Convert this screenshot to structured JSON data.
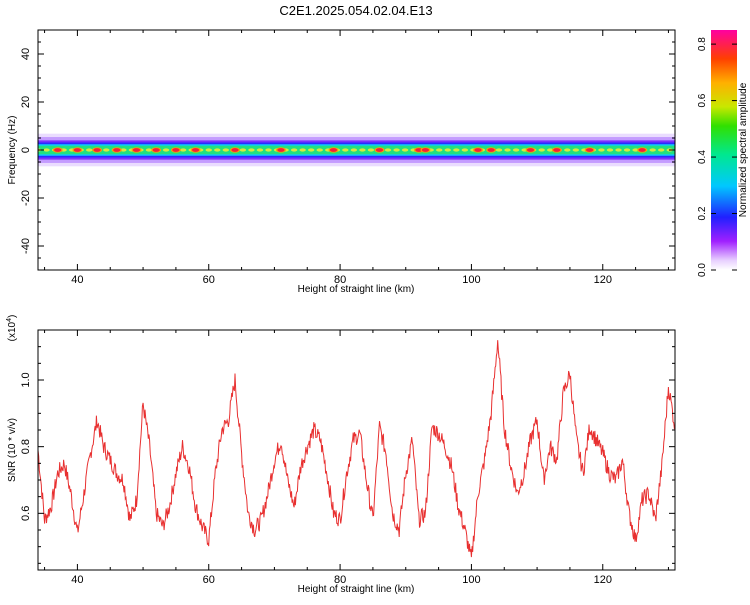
{
  "chart_data": [
    {
      "type": "heatmap",
      "title": "C2E1.2025.054.02.04.E13",
      "xlabel": "Height of straight line (km)",
      "ylabel": "Frequency (Hz)",
      "xlim": [
        34,
        131
      ],
      "ylim": [
        -50,
        50
      ],
      "x_ticks": [
        40,
        60,
        80,
        100,
        120
      ],
      "y_ticks": [
        -40,
        -20,
        0,
        20,
        40
      ],
      "grid": false,
      "band_center_hz": 0,
      "band_halfwidth_hz": 4,
      "colorbar": {
        "label": "Normalized spectral amplitude",
        "range": [
          0.0,
          0.85
        ],
        "ticks": [
          0.0,
          0.2,
          0.4,
          0.6,
          0.8
        ],
        "tick_labels": [
          "0.0",
          "0.2",
          "0.4",
          "0.6",
          "0.8"
        ]
      },
      "peak_heights_km": [
        37,
        40,
        43,
        46,
        49,
        52,
        55,
        58,
        64,
        71,
        79,
        86,
        92,
        93,
        101,
        103,
        109,
        113,
        118,
        126
      ]
    },
    {
      "type": "line",
      "xlabel": "Height of straight line (km)",
      "ylabel": "SNR (10 * v/v)",
      "y_multiplier": "(x10",
      "y_multiplier_exp": "4",
      "y_multiplier_close": ")",
      "xlim": [
        34,
        131
      ],
      "ylim": [
        0.43,
        1.15
      ],
      "x_ticks": [
        40,
        60,
        80,
        100,
        120
      ],
      "y_ticks": [
        0.6,
        0.8,
        1.0
      ],
      "y_tick_labels": [
        "0.6",
        "0.8",
        "1.0"
      ],
      "grid": false,
      "color": "#e83030",
      "series": [
        {
          "x": [
            34,
            35,
            36,
            37,
            38,
            39,
            40,
            41,
            42,
            43,
            44,
            45,
            46,
            47,
            48,
            49,
            50,
            51,
            52,
            53,
            54,
            55,
            56,
            57,
            58,
            59,
            60,
            61,
            62,
            63,
            64,
            65,
            66,
            67,
            68,
            69,
            70,
            71,
            72,
            73,
            74,
            75,
            76,
            77,
            78,
            79,
            80,
            81,
            82,
            83,
            84,
            85,
            86,
            87,
            88,
            89,
            90,
            91,
            92,
            93,
            94,
            95,
            96,
            97,
            98,
            99,
            100,
            101,
            102,
            103,
            104,
            105,
            106,
            107,
            108,
            109,
            110,
            111,
            112,
            113,
            114,
            115,
            116,
            117,
            118,
            119,
            120,
            121,
            122,
            123,
            124,
            125,
            126,
            127,
            128,
            129,
            130,
            131
          ],
          "y": [
            0.79,
            0.58,
            0.62,
            0.72,
            0.75,
            0.66,
            0.54,
            0.66,
            0.78,
            0.88,
            0.8,
            0.76,
            0.72,
            0.7,
            0.58,
            0.64,
            0.93,
            0.8,
            0.6,
            0.56,
            0.62,
            0.72,
            0.8,
            0.74,
            0.62,
            0.56,
            0.52,
            0.72,
            0.85,
            0.88,
            1.0,
            0.78,
            0.6,
            0.55,
            0.58,
            0.66,
            0.76,
            0.82,
            0.7,
            0.62,
            0.74,
            0.8,
            0.85,
            0.82,
            0.72,
            0.6,
            0.58,
            0.72,
            0.82,
            0.84,
            0.7,
            0.58,
            0.86,
            0.78,
            0.6,
            0.55,
            0.72,
            0.82,
            0.58,
            0.6,
            0.86,
            0.84,
            0.8,
            0.74,
            0.62,
            0.55,
            0.46,
            0.66,
            0.76,
            0.9,
            1.12,
            0.86,
            0.74,
            0.66,
            0.72,
            0.82,
            0.88,
            0.7,
            0.8,
            0.76,
            0.96,
            1.02,
            0.82,
            0.72,
            0.86,
            0.82,
            0.78,
            0.72,
            0.7,
            0.76,
            0.6,
            0.52,
            0.64,
            0.66,
            0.58,
            0.74,
            0.98,
            0.86
          ]
        }
      ]
    }
  ]
}
